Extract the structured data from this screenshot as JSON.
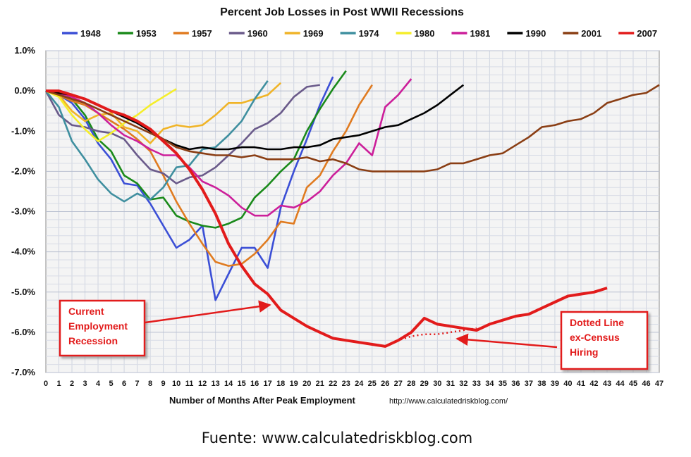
{
  "chart_data": {
    "type": "line",
    "title": "Percent Job Losses in Post WWII Recessions",
    "xlabel": "Number of Months After Peak Employment",
    "ylabel": "",
    "xlim": [
      0,
      47
    ],
    "ylim": [
      -7.0,
      1.0
    ],
    "y_ticks": [
      "1.0%",
      "0.0%",
      "-1.0%",
      "-2.0%",
      "-3.0%",
      "-4.0%",
      "-5.0%",
      "-6.0%",
      "-7.0%"
    ],
    "x_ticks": [
      "0",
      "1",
      "2",
      "3",
      "4",
      "5",
      "6",
      "7",
      "8",
      "9",
      "10",
      "11",
      "12",
      "13",
      "14",
      "15",
      "16",
      "17",
      "18",
      "19",
      "20",
      "21",
      "22",
      "23",
      "24",
      "25",
      "26",
      "27",
      "28",
      "29",
      "30",
      "31",
      "32",
      "33",
      "34",
      "35",
      "36",
      "37",
      "38",
      "39",
      "40",
      "41",
      "42",
      "43",
      "44",
      "45",
      "46",
      "47"
    ],
    "grid": true,
    "legend_position": "top",
    "series": [
      {
        "name": "1948",
        "color": "#3b4fd6",
        "values": [
          0,
          -0.1,
          -0.3,
          -0.7,
          -1.3,
          -1.7,
          -2.3,
          -2.35,
          -2.8,
          -3.35,
          -3.9,
          -3.7,
          -3.35,
          -5.2,
          -4.55,
          -3.9,
          -3.9,
          -4.4,
          -2.9,
          -2.0,
          -1.2,
          -0.35,
          0.35
        ]
      },
      {
        "name": "1953",
        "color": "#1a8a1a",
        "values": [
          0,
          -0.05,
          -0.2,
          -0.6,
          -1.2,
          -1.5,
          -2.1,
          -2.3,
          -2.7,
          -2.65,
          -3.1,
          -3.25,
          -3.35,
          -3.4,
          -3.3,
          -3.15,
          -2.65,
          -2.35,
          -2.0,
          -1.7,
          -1.0,
          -0.45,
          0.05,
          0.5
        ]
      },
      {
        "name": "1957",
        "color": "#e07b20",
        "values": [
          0,
          -0.1,
          -0.25,
          -0.35,
          -0.55,
          -0.75,
          -0.95,
          -1.2,
          -1.5,
          -2.1,
          -2.75,
          -3.3,
          -3.8,
          -4.25,
          -4.35,
          -4.3,
          -4.05,
          -3.7,
          -3.25,
          -3.3,
          -2.4,
          -2.1,
          -1.5,
          -1.0,
          -0.35,
          0.15
        ]
      },
      {
        "name": "1960",
        "color": "#6a5a8a",
        "values": [
          0,
          -0.6,
          -0.85,
          -0.9,
          -1.0,
          -1.05,
          -1.2,
          -1.6,
          -1.95,
          -2.05,
          -2.3,
          -2.15,
          -2.1,
          -1.9,
          -1.6,
          -1.3,
          -0.95,
          -0.8,
          -0.55,
          -0.15,
          0.1,
          0.15
        ]
      },
      {
        "name": "1969",
        "color": "#f0b428",
        "values": [
          0,
          -0.1,
          -0.5,
          -0.75,
          -0.6,
          -0.55,
          -0.9,
          -1.0,
          -1.3,
          -0.95,
          -0.85,
          -0.9,
          -0.85,
          -0.6,
          -0.3,
          -0.3,
          -0.2,
          -0.1,
          0.2
        ]
      },
      {
        "name": "1974",
        "color": "#3f8f9f",
        "values": [
          0,
          -0.4,
          -1.25,
          -1.7,
          -2.2,
          -2.55,
          -2.75,
          -2.55,
          -2.7,
          -2.4,
          -1.9,
          -1.85,
          -1.45,
          -1.4,
          -1.1,
          -0.75,
          -0.2,
          0.25
        ]
      },
      {
        "name": "1980",
        "color": "#f5ee2a",
        "values": [
          0,
          -0.15,
          -0.6,
          -0.95,
          -1.25,
          -1.05,
          -0.8,
          -0.6,
          -0.35,
          -0.15,
          0.05
        ]
      },
      {
        "name": "1981",
        "color": "#cc1f9a",
        "values": [
          0,
          -0.05,
          -0.15,
          -0.3,
          -0.55,
          -0.85,
          -1.1,
          -1.25,
          -1.45,
          -1.6,
          -1.6,
          -1.9,
          -2.25,
          -2.4,
          -2.6,
          -2.9,
          -3.1,
          -3.1,
          -2.85,
          -2.9,
          -2.75,
          -2.5,
          -2.1,
          -1.8,
          -1.3,
          -1.6,
          -0.4,
          -0.1,
          0.3
        ]
      },
      {
        "name": "1990",
        "color": "#000000",
        "values": [
          0,
          -0.05,
          -0.1,
          -0.2,
          -0.35,
          -0.5,
          -0.65,
          -0.8,
          -1.0,
          -1.2,
          -1.35,
          -1.45,
          -1.4,
          -1.45,
          -1.45,
          -1.4,
          -1.4,
          -1.45,
          -1.45,
          -1.4,
          -1.4,
          -1.35,
          -1.2,
          -1.15,
          -1.1,
          -1.0,
          -0.9,
          -0.85,
          -0.7,
          -0.55,
          -0.35,
          -0.1,
          0.15
        ]
      },
      {
        "name": "2001",
        "color": "#8a3e14",
        "values": [
          0,
          -0.1,
          -0.2,
          -0.3,
          -0.45,
          -0.6,
          -0.75,
          -0.9,
          -1.05,
          -1.2,
          -1.4,
          -1.5,
          -1.55,
          -1.6,
          -1.6,
          -1.65,
          -1.6,
          -1.7,
          -1.7,
          -1.7,
          -1.65,
          -1.75,
          -1.7,
          -1.8,
          -1.95,
          -2.0,
          -2.0,
          -2.0,
          -2.0,
          -2.0,
          -1.95,
          -1.8,
          -1.8,
          -1.7,
          -1.6,
          -1.55,
          -1.35,
          -1.15,
          -0.9,
          -0.85,
          -0.75,
          -0.7,
          -0.55,
          -0.3,
          -0.2,
          -0.1,
          -0.05,
          0.15
        ]
      },
      {
        "name": "2007",
        "color": "#e21b1b",
        "values": [
          0,
          0.0,
          -0.1,
          -0.2,
          -0.35,
          -0.5,
          -0.6,
          -0.75,
          -0.95,
          -1.25,
          -1.55,
          -1.95,
          -2.45,
          -3.05,
          -3.8,
          -4.35,
          -4.8,
          -5.05,
          -5.45,
          -5.65,
          -5.85,
          -6.0,
          -6.15,
          -6.2,
          -6.25,
          -6.3,
          -6.35,
          -6.2,
          -6.0,
          -5.65,
          -5.8,
          -5.85,
          -5.9,
          -5.95,
          -5.8,
          -5.7,
          -5.6,
          -5.55,
          -5.4,
          -5.25,
          -5.1,
          -5.05,
          -5.0,
          -4.9
        ]
      }
    ],
    "dotted_line": {
      "x": [
        26,
        27,
        28,
        29,
        30,
        31,
        32,
        33
      ],
      "values": [
        -6.35,
        -6.2,
        -6.1,
        -6.05,
        -6.05,
        -6.0,
        -5.95,
        -5.9
      ]
    },
    "annotations": [
      {
        "id": "current",
        "lines": [
          "Current",
          "Employment",
          "Recession"
        ]
      },
      {
        "id": "dotted",
        "lines": [
          "Dotted Line",
          "ex-Census",
          "Hiring"
        ]
      }
    ],
    "url_text": "http://www.calculatedriskblog.com/"
  },
  "source_text": "Fuente: www.calculatedriskblog.com"
}
